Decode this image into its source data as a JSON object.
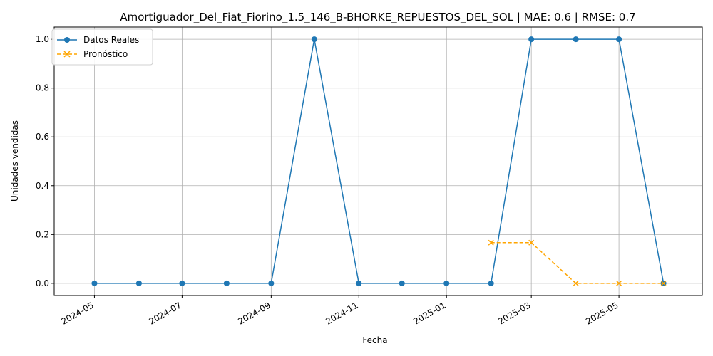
{
  "chart_data": {
    "type": "line",
    "title": "Amortiguador_Del_Fiat_Fiorino_1.5_146_B-BHORKE_REPUESTOS_DEL_SOL | MAE: 0.6 | RMSE: 0.7",
    "xlabel": "Fecha",
    "ylabel": "Unidades vendidas",
    "x_tick_labels": [
      "2024-05",
      "2024-07",
      "2024-09",
      "2024-11",
      "2025-01",
      "2025-03",
      "2025-05"
    ],
    "y_tick_labels": [
      "0.0",
      "0.2",
      "0.4",
      "0.6",
      "0.8",
      "1.0"
    ],
    "ylim": [
      -0.05,
      1.05
    ],
    "xlim": [
      "2024-04-03",
      "2025-06-28"
    ],
    "grid": true,
    "legend_position": "top-left",
    "series": [
      {
        "name": "Datos Reales",
        "color": "#1f77b4",
        "style": "solid",
        "marker": "circle",
        "x": [
          "2024-05-01",
          "2024-06-01",
          "2024-07-01",
          "2024-08-01",
          "2024-09-01",
          "2024-10-01",
          "2024-11-01",
          "2024-12-01",
          "2025-01-01",
          "2025-02-01",
          "2025-03-01",
          "2025-04-01",
          "2025-05-01",
          "2025-06-01"
        ],
        "values": [
          0,
          0,
          0,
          0,
          0,
          1,
          0,
          0,
          0,
          0,
          1,
          1,
          1,
          0
        ]
      },
      {
        "name": "Pronóstico",
        "color": "#ffa500",
        "style": "dashed",
        "marker": "x",
        "x": [
          "2025-02-01",
          "2025-03-01",
          "2025-04-01",
          "2025-05-01",
          "2025-06-01"
        ],
        "values": [
          0.1667,
          0.1667,
          0,
          0,
          0
        ]
      }
    ]
  }
}
